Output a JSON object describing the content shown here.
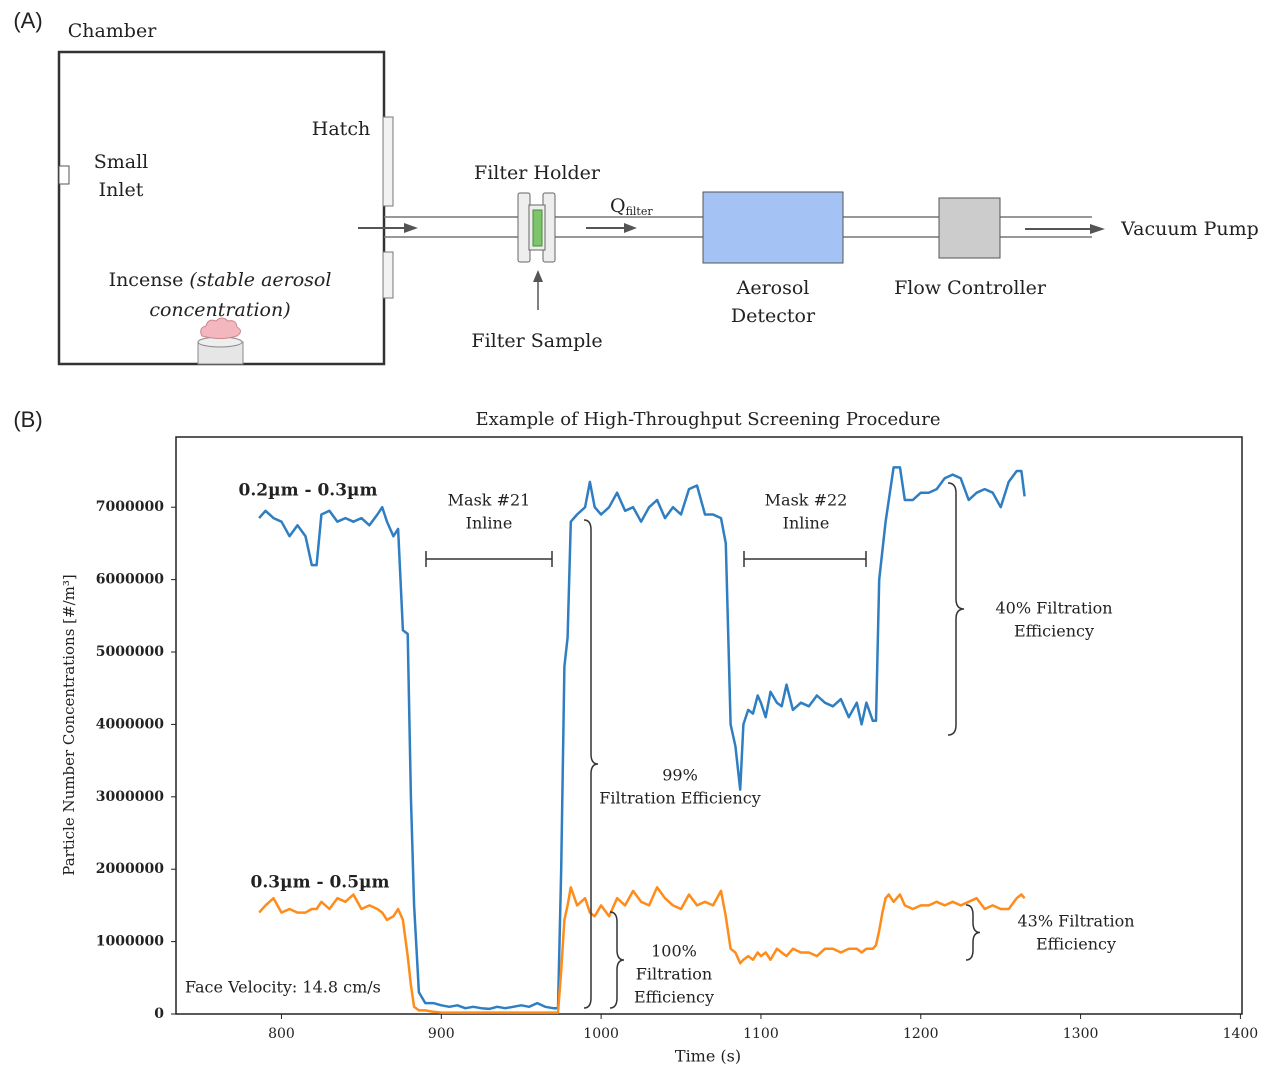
{
  "diagram": {
    "panel_label": "(A)",
    "chamber": "Chamber",
    "small_inlet": [
      "Small",
      "Inlet"
    ],
    "hatch": "Hatch",
    "incense": {
      "label": "Incense",
      "note_lines": [
        "(stable aerosol",
        "concentration)"
      ]
    },
    "filter_holder": "Filter Holder",
    "filter_sample": "Filter Sample",
    "flow": {
      "symbol": "Q",
      "subscript": "filter"
    },
    "aerosol_detector": [
      "Aerosol",
      "Detector"
    ],
    "flow_controller": "Flow Controller",
    "vacuum_pump": "Vacuum Pump"
  },
  "chart_data": {
    "type": "line",
    "panel_label": "(B)",
    "title": "Example of High-Throughput Screening Procedure",
    "xlabel": "Time (s)",
    "ylabel": "Particle Number Concentrations [#/m³]",
    "xlim": [
      734,
      1401
    ],
    "ylim": [
      0,
      7970000
    ],
    "xticks": [
      800,
      900,
      1000,
      1100,
      1200,
      1300,
      1400
    ],
    "yticks": [
      0,
      1000000,
      2000000,
      3000000,
      4000000,
      5000000,
      6000000,
      7000000
    ],
    "grid": false,
    "x": [
      786,
      790,
      795,
      800,
      805,
      810,
      815,
      819,
      822,
      825,
      830,
      835,
      840,
      845,
      850,
      855,
      860,
      863,
      866,
      870,
      873,
      876,
      879,
      881,
      883,
      886,
      890,
      895,
      900,
      905,
      910,
      915,
      920,
      925,
      930,
      935,
      940,
      945,
      950,
      955,
      960,
      965,
      970,
      973,
      975,
      977,
      979,
      981,
      985,
      990,
      993,
      996,
      1000,
      1005,
      1010,
      1015,
      1020,
      1025,
      1030,
      1035,
      1040,
      1045,
      1050,
      1055,
      1060,
      1065,
      1070,
      1075,
      1078,
      1081,
      1084,
      1087,
      1089,
      1092,
      1095,
      1098,
      1100,
      1103,
      1106,
      1110,
      1113,
      1116,
      1120,
      1125,
      1130,
      1135,
      1140,
      1145,
      1150,
      1155,
      1160,
      1163,
      1166,
      1170,
      1172,
      1174,
      1176,
      1178,
      1180,
      1183,
      1187,
      1190,
      1195,
      1200,
      1205,
      1210,
      1215,
      1220,
      1225,
      1230,
      1235,
      1240,
      1245,
      1250,
      1255,
      1260,
      1263,
      1265
    ],
    "series": [
      {
        "name": "0.2µm - 0.3µm",
        "color": "#2f7ec1",
        "values": [
          6850000,
          6950000,
          6850000,
          6800000,
          6600000,
          6750000,
          6600000,
          6200000,
          6200000,
          6900000,
          6950000,
          6800000,
          6850000,
          6800000,
          6850000,
          6750000,
          6900000,
          7000000,
          6800000,
          6600000,
          6700000,
          5300000,
          5250000,
          3000000,
          1500000,
          300000,
          150000,
          150000,
          120000,
          100000,
          120000,
          80000,
          100000,
          80000,
          70000,
          100000,
          80000,
          100000,
          120000,
          100000,
          150000,
          100000,
          80000,
          80000,
          2000000,
          4800000,
          5200000,
          6800000,
          6900000,
          7000000,
          7350000,
          7000000,
          6900000,
          7000000,
          7200000,
          6950000,
          7000000,
          6800000,
          7000000,
          7100000,
          6850000,
          7000000,
          6900000,
          7250000,
          7300000,
          6900000,
          6900000,
          6850000,
          6500000,
          4000000,
          3700000,
          3100000,
          4000000,
          4200000,
          4150000,
          4400000,
          4300000,
          4100000,
          4450000,
          4300000,
          4250000,
          4550000,
          4200000,
          4300000,
          4250000,
          4400000,
          4300000,
          4250000,
          4350000,
          4100000,
          4300000,
          4000000,
          4300000,
          4050000,
          4050000,
          6000000,
          6400000,
          6800000,
          7100000,
          7550000,
          7550000,
          7100000,
          7100000,
          7200000,
          7200000,
          7250000,
          7400000,
          7450000,
          7400000,
          7100000,
          7200000,
          7250000,
          7200000,
          7000000,
          7350000,
          7500000,
          7500000,
          7150000
        ]
      },
      {
        "name": "0.3µm - 0.5µm",
        "color": "#ff8c1a",
        "values": [
          1400000,
          1500000,
          1600000,
          1400000,
          1450000,
          1400000,
          1400000,
          1450000,
          1450000,
          1550000,
          1450000,
          1600000,
          1550000,
          1650000,
          1450000,
          1500000,
          1450000,
          1400000,
          1300000,
          1350000,
          1450000,
          1300000,
          800000,
          400000,
          100000,
          50000,
          50000,
          30000,
          20000,
          20000,
          20000,
          20000,
          20000,
          20000,
          20000,
          20000,
          20000,
          20000,
          20000,
          20000,
          20000,
          20000,
          20000,
          20000,
          600000,
          1300000,
          1500000,
          1750000,
          1500000,
          1600000,
          1400000,
          1350000,
          1500000,
          1350000,
          1600000,
          1500000,
          1700000,
          1550000,
          1500000,
          1750000,
          1600000,
          1500000,
          1450000,
          1650000,
          1500000,
          1550000,
          1500000,
          1700000,
          1350000,
          900000,
          850000,
          700000,
          750000,
          800000,
          750000,
          850000,
          800000,
          850000,
          750000,
          900000,
          850000,
          800000,
          900000,
          850000,
          850000,
          800000,
          900000,
          900000,
          850000,
          900000,
          900000,
          850000,
          900000,
          900000,
          950000,
          1150000,
          1400000,
          1600000,
          1650000,
          1550000,
          1650000,
          1500000,
          1450000,
          1500000,
          1500000,
          1550000,
          1500000,
          1550000,
          1500000,
          1550000,
          1600000,
          1450000,
          1500000,
          1450000,
          1450000,
          1600000,
          1650000,
          1600000
        ]
      }
    ],
    "annotations": [
      {
        "lines": [
          "Mask #21",
          "Inline"
        ]
      },
      {
        "lines": [
          "Mask #22",
          "Inline"
        ]
      },
      {
        "lines": [
          "99%",
          "Filtration Efficiency"
        ]
      },
      {
        "lines": [
          "40%  Filtration",
          "Efficiency"
        ]
      },
      {
        "lines": [
          "100%",
          "Filtration",
          "Efficiency"
        ]
      },
      {
        "lines": [
          "43%  Filtration",
          "Efficiency"
        ]
      },
      {
        "lines": [
          "Face Velocity: 14.8 cm/s"
        ]
      }
    ]
  }
}
